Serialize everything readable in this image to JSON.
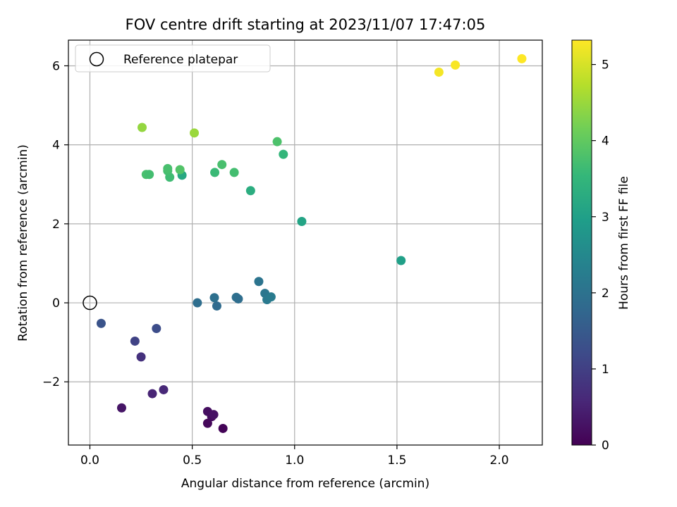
{
  "chart_data": {
    "type": "scatter",
    "title": "FOV centre drift starting at 2023/11/07 17:47:05",
    "xlabel": "Angular distance from reference (arcmin)",
    "ylabel": "Rotation from reference (arcmin)",
    "xlim": [
      -0.105,
      2.21
    ],
    "ylim": [
      -3.6,
      6.65
    ],
    "x_ticks": [
      0.0,
      0.5,
      1.0,
      1.5,
      2.0
    ],
    "x_tick_labels": [
      "0.0",
      "0.5",
      "1.0",
      "1.5",
      "2.0"
    ],
    "y_ticks": [
      -2,
      0,
      2,
      4,
      6
    ],
    "y_tick_labels": [
      "−2",
      "0",
      "2",
      "4",
      "6"
    ],
    "grid": true,
    "legend": {
      "placement": "top-left",
      "entries": [
        {
          "label": "Reference platepar",
          "marker": "open-circle",
          "color": "#000000"
        }
      ]
    },
    "reference_point": {
      "x": 0.0,
      "y": 0.0
    },
    "colorbar": {
      "label": "Hours from first FF file",
      "colormap": "viridis",
      "range": [
        0,
        5.32
      ],
      "ticks": [
        0,
        1,
        2,
        3,
        4,
        5
      ],
      "tick_labels": [
        "0",
        "1",
        "2",
        "3",
        "4",
        "5"
      ]
    },
    "points": [
      {
        "x": 0.65,
        "y": -3.18,
        "c": 0.05
      },
      {
        "x": 0.575,
        "y": -3.05,
        "c": 0.1
      },
      {
        "x": 0.595,
        "y": -2.88,
        "c": 0.15
      },
      {
        "x": 0.575,
        "y": -2.75,
        "c": 0.2
      },
      {
        "x": 0.605,
        "y": -2.83,
        "c": 0.25
      },
      {
        "x": 0.155,
        "y": -2.66,
        "c": 0.3
      },
      {
        "x": 0.305,
        "y": -2.3,
        "c": 0.55
      },
      {
        "x": 0.36,
        "y": -2.2,
        "c": 0.6
      },
      {
        "x": 0.25,
        "y": -1.37,
        "c": 0.75
      },
      {
        "x": 0.22,
        "y": -0.97,
        "c": 1.05
      },
      {
        "x": 0.325,
        "y": -0.65,
        "c": 1.25
      },
      {
        "x": 0.055,
        "y": -0.52,
        "c": 1.35
      },
      {
        "x": 0.525,
        "y": 0.0,
        "c": 1.9
      },
      {
        "x": 0.62,
        "y": -0.08,
        "c": 1.85
      },
      {
        "x": 0.608,
        "y": 0.13,
        "c": 1.95
      },
      {
        "x": 0.715,
        "y": 0.14,
        "c": 1.95
      },
      {
        "x": 0.725,
        "y": 0.1,
        "c": 1.9
      },
      {
        "x": 0.825,
        "y": 0.54,
        "c": 2.05
      },
      {
        "x": 0.855,
        "y": 0.24,
        "c": 2.1
      },
      {
        "x": 0.865,
        "y": 0.08,
        "c": 2.15
      },
      {
        "x": 0.885,
        "y": 0.15,
        "c": 2.2
      },
      {
        "x": 1.52,
        "y": 1.07,
        "c": 3.0
      },
      {
        "x": 1.035,
        "y": 2.06,
        "c": 3.1
      },
      {
        "x": 0.785,
        "y": 2.84,
        "c": 3.3
      },
      {
        "x": 0.45,
        "y": 3.23,
        "c": 3.2
      },
      {
        "x": 0.61,
        "y": 3.3,
        "c": 3.6
      },
      {
        "x": 0.705,
        "y": 3.3,
        "c": 3.7
      },
      {
        "x": 0.645,
        "y": 3.5,
        "c": 3.75
      },
      {
        "x": 0.945,
        "y": 3.76,
        "c": 3.5
      },
      {
        "x": 0.915,
        "y": 4.08,
        "c": 3.8
      },
      {
        "x": 0.39,
        "y": 3.18,
        "c": 3.65
      },
      {
        "x": 0.38,
        "y": 3.34,
        "c": 3.7
      },
      {
        "x": 0.38,
        "y": 3.4,
        "c": 3.75
      },
      {
        "x": 0.44,
        "y": 3.37,
        "c": 3.85
      },
      {
        "x": 0.275,
        "y": 3.25,
        "c": 3.75
      },
      {
        "x": 0.29,
        "y": 3.25,
        "c": 3.7
      },
      {
        "x": 0.255,
        "y": 4.44,
        "c": 4.45
      },
      {
        "x": 0.51,
        "y": 4.3,
        "c": 4.5
      },
      {
        "x": 1.705,
        "y": 5.84,
        "c": 5.25
      },
      {
        "x": 1.785,
        "y": 6.02,
        "c": 5.28
      },
      {
        "x": 2.11,
        "y": 6.18,
        "c": 5.32
      }
    ]
  }
}
